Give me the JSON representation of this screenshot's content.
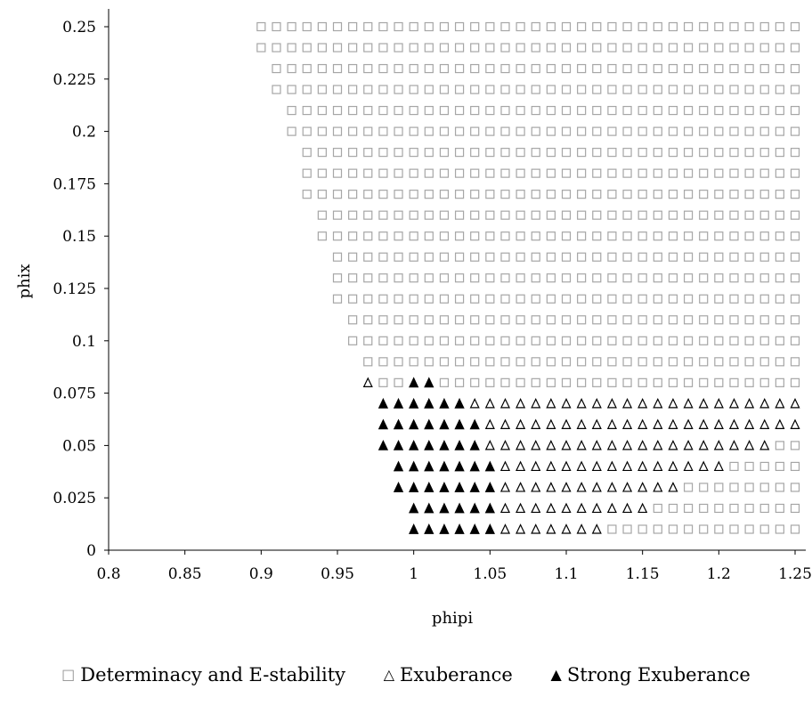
{
  "chart_data": {
    "type": "scatter",
    "xlabel": "phipi",
    "ylabel": "phix",
    "xlim": [
      0.8,
      1.25
    ],
    "ylim": [
      0,
      0.25
    ],
    "x_ticks": [
      "0.8",
      "0.85",
      "0.9",
      "0.95",
      "1",
      "1.05",
      "1.1",
      "1.15",
      "1.2",
      "1.25"
    ],
    "y_ticks": [
      "0",
      "0.025",
      "0.05",
      "0.075",
      "0.1",
      "0.125",
      "0.15",
      "0.175",
      "0.2",
      "0.225",
      "0.25"
    ],
    "grid": false,
    "legend_position": "bottom",
    "grid_points": {
      "phipi_start": 0.9,
      "phipi_end": 1.25,
      "phipi_step": 0.01,
      "phix_start": 0.01,
      "phix_end": 0.25,
      "phix_step": 0.01
    },
    "series": [
      {
        "name": "Determinacy and E-stability",
        "marker": "open-square",
        "color": "#a6a6a6",
        "note_rows": [
          {
            "phix": 0.25,
            "phipi_min": 0.9
          },
          {
            "phix": 0.24,
            "phipi_min": 0.9
          },
          {
            "phix": 0.23,
            "phipi_min": 0.91
          },
          {
            "phix": 0.22,
            "phipi_min": 0.91
          },
          {
            "phix": 0.21,
            "phipi_min": 0.92
          },
          {
            "phix": 0.2,
            "phipi_min": 0.92
          },
          {
            "phix": 0.19,
            "phipi_min": 0.93
          },
          {
            "phix": 0.18,
            "phipi_min": 0.93
          },
          {
            "phix": 0.17,
            "phipi_min": 0.93
          },
          {
            "phix": 0.16,
            "phipi_min": 0.94
          },
          {
            "phix": 0.15,
            "phipi_min": 0.94
          },
          {
            "phix": 0.14,
            "phipi_min": 0.95
          },
          {
            "phix": 0.13,
            "phipi_min": 0.95
          },
          {
            "phix": 0.12,
            "phipi_min": 0.95
          },
          {
            "phix": 0.11,
            "phipi_min": 0.96
          },
          {
            "phix": 0.1,
            "phipi_min": 0.96
          },
          {
            "phix": 0.09,
            "phipi_min": 0.97
          },
          {
            "phix": 0.08,
            "phipi_min": 0.97
          }
        ]
      },
      {
        "name": "Exuberance",
        "marker": "open-triangle",
        "color": "#000000"
      },
      {
        "name": "Strong Exuberance",
        "marker": "filled-triangle",
        "color": "#000000"
      }
    ],
    "low_rows": [
      {
        "phix": 0.08,
        "square_from": 0.97,
        "open": [
          0.97
        ],
        "filled": [
          1.0,
          1.01
        ]
      },
      {
        "phix": 0.07,
        "filled_range": [
          0.98,
          1.03
        ],
        "open_range": [
          1.04,
          1.25
        ],
        "square_from": null
      },
      {
        "phix": 0.06,
        "filled_range": [
          0.98,
          1.04
        ],
        "open_range": [
          1.05,
          1.25
        ],
        "square_from": null
      },
      {
        "phix": 0.05,
        "filled_range": [
          0.98,
          1.04
        ],
        "open_range": [
          1.05,
          1.23
        ],
        "square_from": 1.24
      },
      {
        "phix": 0.04,
        "filled_range": [
          0.99,
          1.05
        ],
        "open_range": [
          1.06,
          1.2
        ],
        "square_from": 1.21
      },
      {
        "phix": 0.03,
        "filled_range": [
          0.99,
          1.05
        ],
        "open_range": [
          1.06,
          1.17
        ],
        "square_from": 1.18
      },
      {
        "phix": 0.02,
        "filled_range": [
          1.0,
          1.05
        ],
        "open_range": [
          1.06,
          1.15
        ],
        "square_from": 1.16
      },
      {
        "phix": 0.01,
        "filled_range": [
          1.0,
          1.05
        ],
        "open_range": [
          1.06,
          1.12
        ],
        "square_from": 1.13
      }
    ]
  },
  "legend": {
    "items": [
      {
        "label": "Determinacy and E-stability",
        "symbol": "□"
      },
      {
        "label": "Exuberance",
        "symbol": "△"
      },
      {
        "label": "Strong Exuberance",
        "symbol": "▲"
      }
    ]
  }
}
